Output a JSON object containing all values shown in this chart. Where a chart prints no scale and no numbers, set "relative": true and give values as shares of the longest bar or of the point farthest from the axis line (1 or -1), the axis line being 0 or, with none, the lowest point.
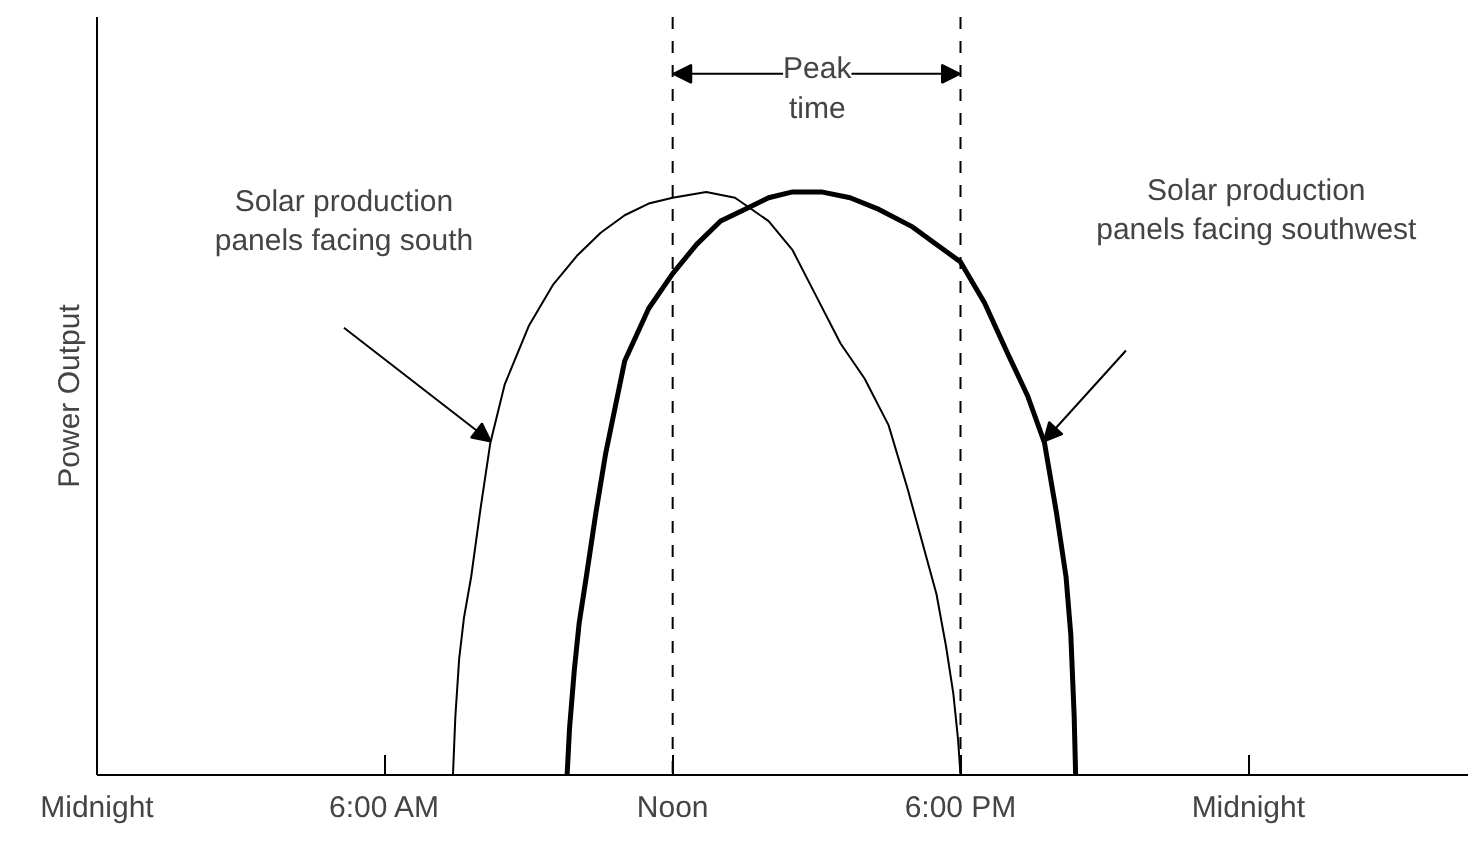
{
  "chart_data": {
    "type": "line",
    "relative": true,
    "ylabel": "Power Output",
    "grid": false,
    "marker": "none",
    "line_style": "solid",
    "xlim": [
      0,
      28.6
    ],
    "xticks": [
      {
        "value": 0,
        "label": "Midnight"
      },
      {
        "value": 6,
        "label": "6:00 AM"
      },
      {
        "value": 12,
        "label": "Noon"
      },
      {
        "value": 18,
        "label": "6:00 PM"
      },
      {
        "value": 24,
        "label": "Midnight"
      }
    ],
    "series": [
      {
        "color": "#000000",
        "x": [
          7.42,
          7.47,
          7.55,
          7.65,
          7.8,
          8.0,
          8.2,
          8.5,
          9.0,
          9.5,
          10.0,
          10.5,
          11.0,
          11.5,
          12.0,
          12.7,
          13.3,
          14.0,
          14.5,
          15.0,
          15.5,
          16.0,
          16.5,
          16.9,
          17.2,
          17.5,
          17.7,
          17.85,
          17.95,
          18.0
        ],
        "values": [
          0,
          0.1,
          0.2,
          0.27,
          0.34,
          0.46,
          0.57,
          0.67,
          0.77,
          0.84,
          0.89,
          0.93,
          0.96,
          0.98,
          0.99,
          1.0,
          0.99,
          0.95,
          0.9,
          0.82,
          0.74,
          0.68,
          0.6,
          0.49,
          0.4,
          0.31,
          0.22,
          0.14,
          0.06,
          0
        ]
      },
      {
        "color": "#000000",
        "x": [
          9.8,
          9.85,
          9.95,
          10.05,
          10.2,
          10.4,
          10.6,
          11.0,
          11.5,
          12.0,
          12.5,
          13.0,
          13.5,
          14.0,
          14.5,
          15.1,
          15.7,
          16.3,
          17.0,
          17.5,
          18.0,
          18.5,
          19.0,
          19.4,
          19.75,
          20.0,
          20.2,
          20.3,
          20.37,
          20.4
        ],
        "values": [
          0,
          0.08,
          0.18,
          0.26,
          0.34,
          0.45,
          0.55,
          0.71,
          0.8,
          0.86,
          0.91,
          0.95,
          0.97,
          0.99,
          1.0,
          1.0,
          0.99,
          0.97,
          0.94,
          0.91,
          0.88,
          0.81,
          0.72,
          0.65,
          0.57,
          0.45,
          0.34,
          0.24,
          0.1,
          0
        ]
      }
    ],
    "ref_lines": [
      {
        "axis": "x",
        "value": 12,
        "line_style": "dashed"
      },
      {
        "axis": "x",
        "value": 18,
        "line_style": "dashed"
      }
    ],
    "annotations": [
      "Peak\ntime",
      "Solar production\npanels facing south",
      "Solar production\npanels facing southwest"
    ]
  }
}
